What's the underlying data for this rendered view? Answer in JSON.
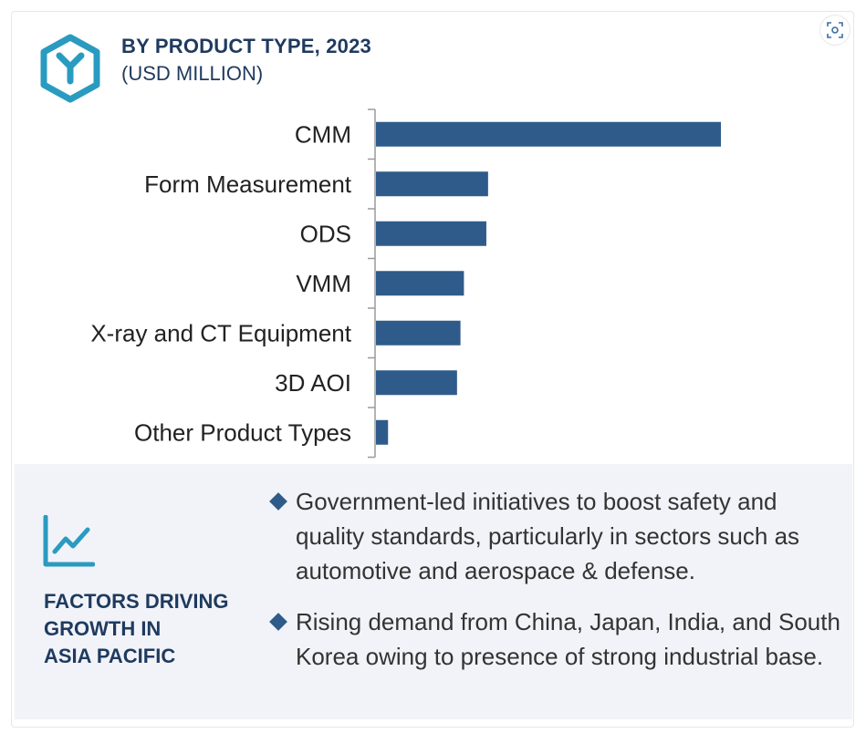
{
  "header": {
    "title": "BY PRODUCT TYPE, 2023",
    "subtitle": "(USD MILLION)"
  },
  "chart_data": {
    "type": "bar",
    "orientation": "horizontal",
    "title": "BY PRODUCT TYPE, 2023",
    "subtitle": "(USD MILLION)",
    "categories": [
      "CMM",
      "Form Measurement",
      "ODS",
      "VMM",
      "X-ray and CT Equipment",
      "3D AOI",
      "Other Product Types"
    ],
    "values": [
      100,
      32.5,
      32,
      25.5,
      24.5,
      23.5,
      3.5
    ],
    "xlim": [
      0,
      100
    ],
    "grid": false,
    "bar_color": "#2f5b8a"
  },
  "factors": {
    "label_lines": [
      "FACTORS DRIVING",
      "GROWTH IN",
      "ASIA PACIFIC"
    ],
    "bullets": [
      "Government-led initiatives to boost safety and quality standards, particularly in sectors such as automotive and aerospace & defense.",
      "Rising demand from China, Japan, India, and South Korea owing to presence of strong industrial base."
    ]
  },
  "icons": {
    "header_icon": "hexagon-y-icon",
    "factors_icon": "trend-chart-icon",
    "corner_button": "scan-icon"
  },
  "colors": {
    "accent": "#2a9bc0",
    "title": "#1f3a5f",
    "bar": "#2f5b8a",
    "panel": "#f1f3f8"
  }
}
